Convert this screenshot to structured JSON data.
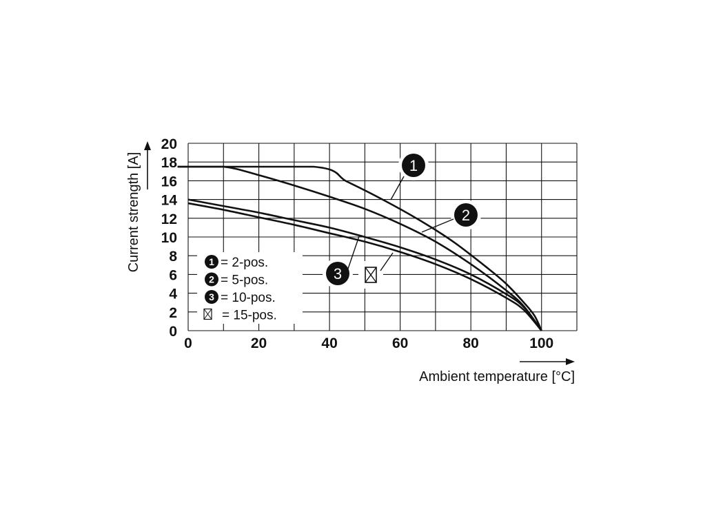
{
  "chart_data": {
    "type": "line",
    "title": "",
    "xlabel": "Ambient temperature [°C]",
    "ylabel": "Current strength [A]",
    "xlim": [
      0,
      110
    ],
    "ylim": [
      0,
      20
    ],
    "xticks": [
      "0",
      "20",
      "40",
      "60",
      "80",
      "100"
    ],
    "yticks": [
      "0",
      "2",
      "4",
      "6",
      "8",
      "10",
      "12",
      "14",
      "16",
      "18",
      "20"
    ],
    "grid": true,
    "legend": {
      "placement": "lower-left",
      "entries": [
        {
          "marker": "1",
          "label": "= 2-pos."
        },
        {
          "marker": "2",
          "label": "= 5-pos."
        },
        {
          "marker": "3",
          "label": "= 10-pos."
        },
        {
          "marker": "⊠",
          "label": "= 15-pos."
        }
      ]
    },
    "callouts": [
      {
        "marker": "1",
        "series": "1"
      },
      {
        "marker": "2",
        "series": "2"
      },
      {
        "marker": "3",
        "series": "3"
      },
      {
        "marker": "⊠",
        "series": "⊠"
      }
    ],
    "series": [
      {
        "name": "1",
        "x": [
          -3,
          35.5,
          45,
          55,
          65,
          75,
          85,
          90,
          95,
          98,
          100
        ],
        "y": [
          17.5,
          17.5,
          15.9,
          14.0,
          11.9,
          9.5,
          6.6,
          5.0,
          3.0,
          1.6,
          0
        ]
      },
      {
        "name": "2",
        "x": [
          -3,
          10,
          20,
          30,
          40,
          50,
          60,
          70,
          80,
          90,
          95,
          100
        ],
        "y": [
          17.5,
          17.5,
          16.6,
          15.5,
          14.3,
          13.0,
          11.4,
          9.5,
          7.1,
          4.3,
          2.6,
          0
        ]
      },
      {
        "name": "3",
        "x": [
          0,
          10,
          20,
          30,
          40,
          50,
          60,
          70,
          80,
          90,
          95,
          100
        ],
        "y": [
          14.0,
          13.3,
          12.6,
          11.8,
          11.0,
          10.0,
          8.9,
          7.6,
          6.0,
          3.9,
          2.5,
          0
        ]
      },
      {
        "name": "⊠",
        "x": [
          0,
          10,
          20,
          30,
          40,
          50,
          60,
          70,
          80,
          90,
          95,
          100
        ],
        "y": [
          13.6,
          12.9,
          12.1,
          11.3,
          10.4,
          9.5,
          8.4,
          7.1,
          5.5,
          3.5,
          2.2,
          0
        ]
      }
    ]
  }
}
